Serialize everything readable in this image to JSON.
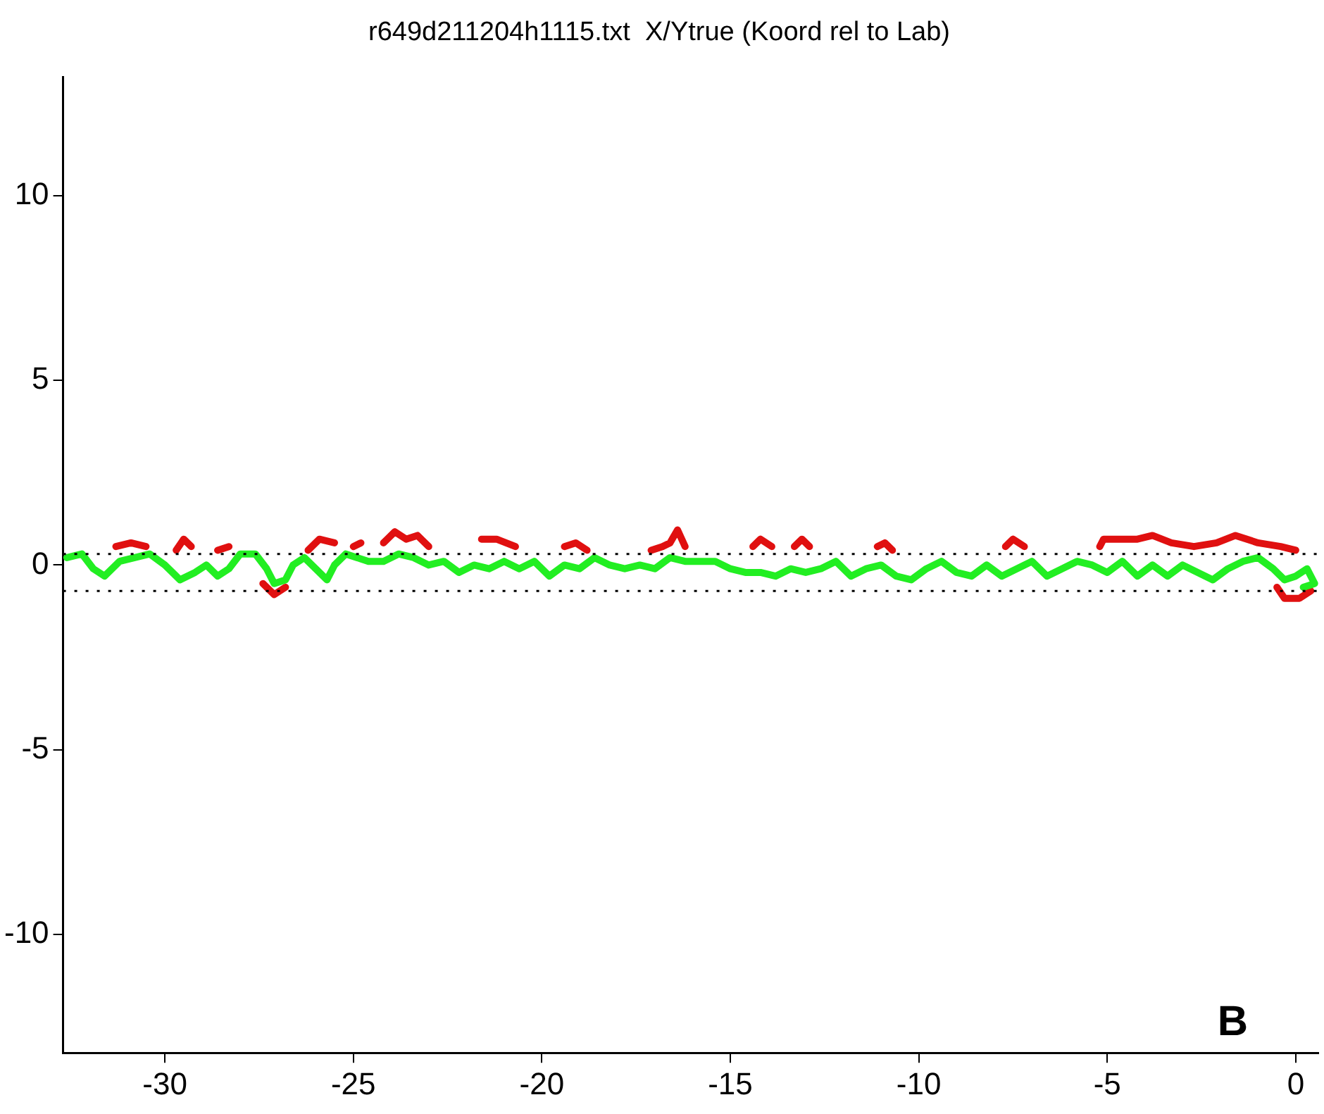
{
  "chart_data": {
    "type": "line",
    "title": "r649d211204h1115.txt  X/Ytrue (Koord rel to Lab)",
    "xlim": [
      -32.7,
      0.6
    ],
    "xticks": [
      -30,
      -25,
      -20,
      -15,
      -10,
      -5,
      0
    ],
    "ylim": [
      -13.2,
      13.2
    ],
    "yticks": [
      -10,
      -5,
      0,
      5,
      10
    ],
    "grid": false,
    "legend": false,
    "marker": "none",
    "line_style": "solid",
    "ref_lines": [
      {
        "axis": "y",
        "value": 0.3,
        "color": "#000000",
        "line_style": "dotted"
      },
      {
        "axis": "y",
        "value": -0.7,
        "color": "#000000",
        "line_style": "dotted"
      }
    ],
    "annotations": [
      "B"
    ],
    "series": [
      {
        "color": "#22ee22",
        "x": [
          -32.6,
          -32.2,
          -31.9,
          -31.6,
          -31.2,
          -30.8,
          -30.4,
          -30.0,
          -29.6,
          -29.2,
          -28.9,
          -28.6,
          -28.3,
          -28.0,
          -27.6,
          -27.3,
          -27.1,
          -26.8,
          -26.6,
          -26.3,
          -26.0,
          -25.7,
          -25.5,
          -25.2,
          -24.9,
          -24.6,
          -24.2,
          -23.8,
          -23.4,
          -23.0,
          -22.6,
          -22.2,
          -21.8,
          -21.4,
          -21.0,
          -20.6,
          -20.2,
          -19.8,
          -19.4,
          -19.0,
          -18.6,
          -18.2,
          -17.8,
          -17.4,
          -17.0,
          -16.6,
          -16.2,
          -15.8,
          -15.4,
          -15.0,
          -14.6,
          -14.2,
          -13.8,
          -13.4,
          -13.0,
          -12.6,
          -12.2,
          -11.8,
          -11.4,
          -11.0,
          -10.6,
          -10.2,
          -9.8,
          -9.4,
          -9.0,
          -8.6,
          -8.2,
          -7.8,
          -7.4,
          -7.0,
          -6.6,
          -6.2,
          -5.8,
          -5.4,
          -5.0,
          -4.6,
          -4.2,
          -3.8,
          -3.4,
          -3.0,
          -2.6,
          -2.2,
          -1.8,
          -1.4,
          -1.0,
          -0.6,
          -0.3,
          0.0,
          0.3,
          0.5,
          0.2
        ],
        "values": [
          0.2,
          0.3,
          -0.1,
          -0.3,
          0.1,
          0.2,
          0.3,
          0.0,
          -0.4,
          -0.2,
          0.0,
          -0.3,
          -0.1,
          0.3,
          0.3,
          -0.1,
          -0.5,
          -0.4,
          0.0,
          0.2,
          -0.1,
          -0.4,
          0.0,
          0.3,
          0.2,
          0.1,
          0.1,
          0.3,
          0.2,
          0.0,
          0.1,
          -0.2,
          0.0,
          -0.1,
          0.1,
          -0.1,
          0.1,
          -0.3,
          0.0,
          -0.1,
          0.2,
          0.0,
          -0.1,
          0.0,
          -0.1,
          0.2,
          0.1,
          0.1,
          0.1,
          -0.1,
          -0.2,
          -0.2,
          -0.3,
          -0.1,
          -0.2,
          -0.1,
          0.1,
          -0.3,
          -0.1,
          0.0,
          -0.3,
          -0.4,
          -0.1,
          0.1,
          -0.2,
          -0.3,
          0.0,
          -0.3,
          -0.1,
          0.1,
          -0.3,
          -0.1,
          0.1,
          0.0,
          -0.2,
          0.1,
          -0.3,
          0.0,
          -0.3,
          0.0,
          -0.2,
          -0.4,
          -0.1,
          0.1,
          0.2,
          -0.1,
          -0.4,
          -0.3,
          -0.1,
          -0.5,
          -0.6
        ]
      },
      {
        "color": "#e01010",
        "x": [
          -31.3,
          -30.9,
          -30.5,
          -30.1,
          -29.7,
          -29.5,
          -29.3,
          -29.0,
          -28.6,
          -28.3,
          -27.9,
          -27.4,
          -27.1,
          -26.8,
          -26.5,
          -26.2,
          -25.9,
          -25.5,
          -25.3,
          -25.0,
          -24.8,
          -24.5,
          -24.2,
          -23.9,
          -23.6,
          -23.3,
          -23.0,
          -22.4,
          -21.6,
          -21.2,
          -20.7,
          -20.0,
          -19.4,
          -19.1,
          -18.8,
          -18.0,
          -17.1,
          -16.8,
          -16.6,
          -16.4,
          -16.2,
          -15.3,
          -14.4,
          -14.2,
          -13.9,
          -13.6,
          -13.3,
          -13.1,
          -12.9,
          -12.0,
          -11.1,
          -10.9,
          -10.7,
          -9.2,
          -7.7,
          -7.5,
          -7.2,
          -6.2,
          -5.2,
          -5.1,
          -4.2,
          -3.8,
          -3.3,
          -2.7,
          -2.1,
          -1.6,
          -1.0,
          -0.4,
          0.0
        ],
        "values": [
          0.5,
          0.6,
          0.5,
          null,
          0.4,
          0.7,
          0.5,
          null,
          0.4,
          0.5,
          null,
          -0.5,
          -0.8,
          -0.6,
          null,
          0.4,
          0.7,
          0.6,
          null,
          0.5,
          0.6,
          null,
          0.6,
          0.9,
          0.7,
          0.8,
          0.5,
          null,
          0.7,
          0.7,
          0.5,
          null,
          0.5,
          0.6,
          0.4,
          null,
          0.4,
          0.5,
          0.6,
          0.95,
          0.5,
          null,
          0.5,
          0.7,
          0.5,
          null,
          0.5,
          0.7,
          0.5,
          null,
          0.5,
          0.6,
          0.4,
          null,
          0.5,
          0.7,
          0.5,
          null,
          0.5,
          0.7,
          0.7,
          0.8,
          0.6,
          0.5,
          0.6,
          0.8,
          0.6,
          0.5,
          0.4
        ]
      },
      {
        "color": "#e01010",
        "x": [
          -0.5,
          -0.3,
          0.1,
          0.4
        ],
        "values": [
          -0.6,
          -0.9,
          -0.9,
          -0.7
        ]
      }
    ]
  }
}
